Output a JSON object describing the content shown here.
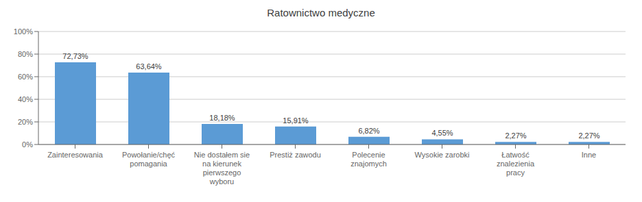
{
  "chart_data": {
    "type": "bar",
    "title": "Ratownictwo medyczne",
    "categories": [
      "Zainteresowania",
      "Powołanie/chęć\npomagania",
      "Nie dostałem sie\nna kierunek\npierwszego\nwyboru",
      "Prestiż zawodu",
      "Polecenie\nznajomych",
      "Wysokie zarobki",
      "Łatwość\nznalezienia\npracy",
      "Inne"
    ],
    "values": [
      72.73,
      63.64,
      18.18,
      15.91,
      6.82,
      4.55,
      2.27,
      2.27
    ],
    "value_labels": [
      "72,73%",
      "63,64%",
      "18,18%",
      "15,91%",
      "6,82%",
      "4,55%",
      "2,27%",
      "2,27%"
    ],
    "data_labels": true,
    "color": "#5B9BD5",
    "ylim": [
      0,
      100
    ],
    "yticks": [
      {
        "value": 0,
        "label": "0%"
      },
      {
        "value": 20,
        "label": "20%"
      },
      {
        "value": 40,
        "label": "40%"
      },
      {
        "value": 60,
        "label": "60%"
      },
      {
        "value": 80,
        "label": "80%"
      },
      {
        "value": 100,
        "label": "100%"
      }
    ],
    "grid": true
  }
}
